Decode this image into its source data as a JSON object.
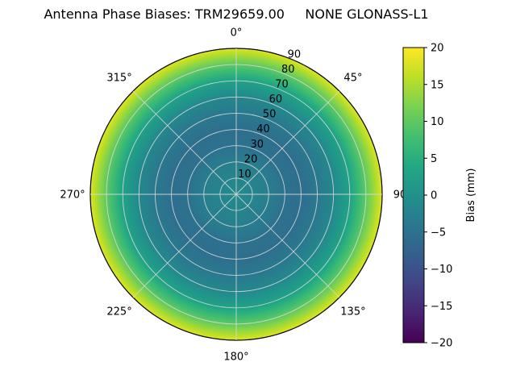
{
  "title": "Antenna Phase Biases: TRM29659.00     NONE GLONASS-L1",
  "chart_data": {
    "type": "heatmap",
    "projection": "polar",
    "theta_zero": "top",
    "theta_direction": "clockwise",
    "grid": true,
    "angle_labels": [
      "0°",
      "45°",
      "90",
      "135°",
      "180°",
      "225°",
      "270°",
      "315°"
    ],
    "angle_values_deg": [
      0,
      45,
      90,
      135,
      180,
      225,
      270,
      315
    ],
    "radial_tick_labels": [
      "10",
      "20",
      "30",
      "40",
      "50",
      "60",
      "70",
      "80",
      "90"
    ],
    "radial_tick_values": [
      10,
      20,
      30,
      40,
      50,
      60,
      70,
      80,
      90
    ],
    "radial_max": 90,
    "radial_label_azimuth_deg": 22.5,
    "symmetry": "azimuthal",
    "radial_profile": {
      "zenith_deg": [
        0,
        10,
        20,
        30,
        40,
        50,
        60,
        70,
        80,
        85,
        90
      ],
      "bias_mm": [
        -1,
        -2,
        -3,
        -5,
        -5.5,
        -4,
        -1.5,
        3,
        10,
        14,
        18
      ]
    },
    "colorbar": {
      "label": "Bias (mm)",
      "min": -20,
      "max": 20,
      "tick_values": [
        20,
        15,
        10,
        5,
        0,
        -5,
        -10,
        -15,
        -20
      ],
      "tick_labels": [
        "20",
        "15",
        "10",
        "5",
        "0",
        "−5",
        "−10",
        "−15",
        "−20"
      ],
      "colormap": "viridis"
    },
    "colormap_stops": [
      {
        "t": 0.0,
        "color": "#440154"
      },
      {
        "t": 0.1,
        "color": "#482475"
      },
      {
        "t": 0.2,
        "color": "#414487"
      },
      {
        "t": 0.3,
        "color": "#355f8d"
      },
      {
        "t": 0.4,
        "color": "#2a788e"
      },
      {
        "t": 0.5,
        "color": "#21918c"
      },
      {
        "t": 0.6,
        "color": "#22a884"
      },
      {
        "t": 0.7,
        "color": "#44bf70"
      },
      {
        "t": 0.8,
        "color": "#7ad151"
      },
      {
        "t": 0.9,
        "color": "#bddf26"
      },
      {
        "t": 1.0,
        "color": "#fde725"
      }
    ],
    "grid_color": "#d9d9d9"
  }
}
